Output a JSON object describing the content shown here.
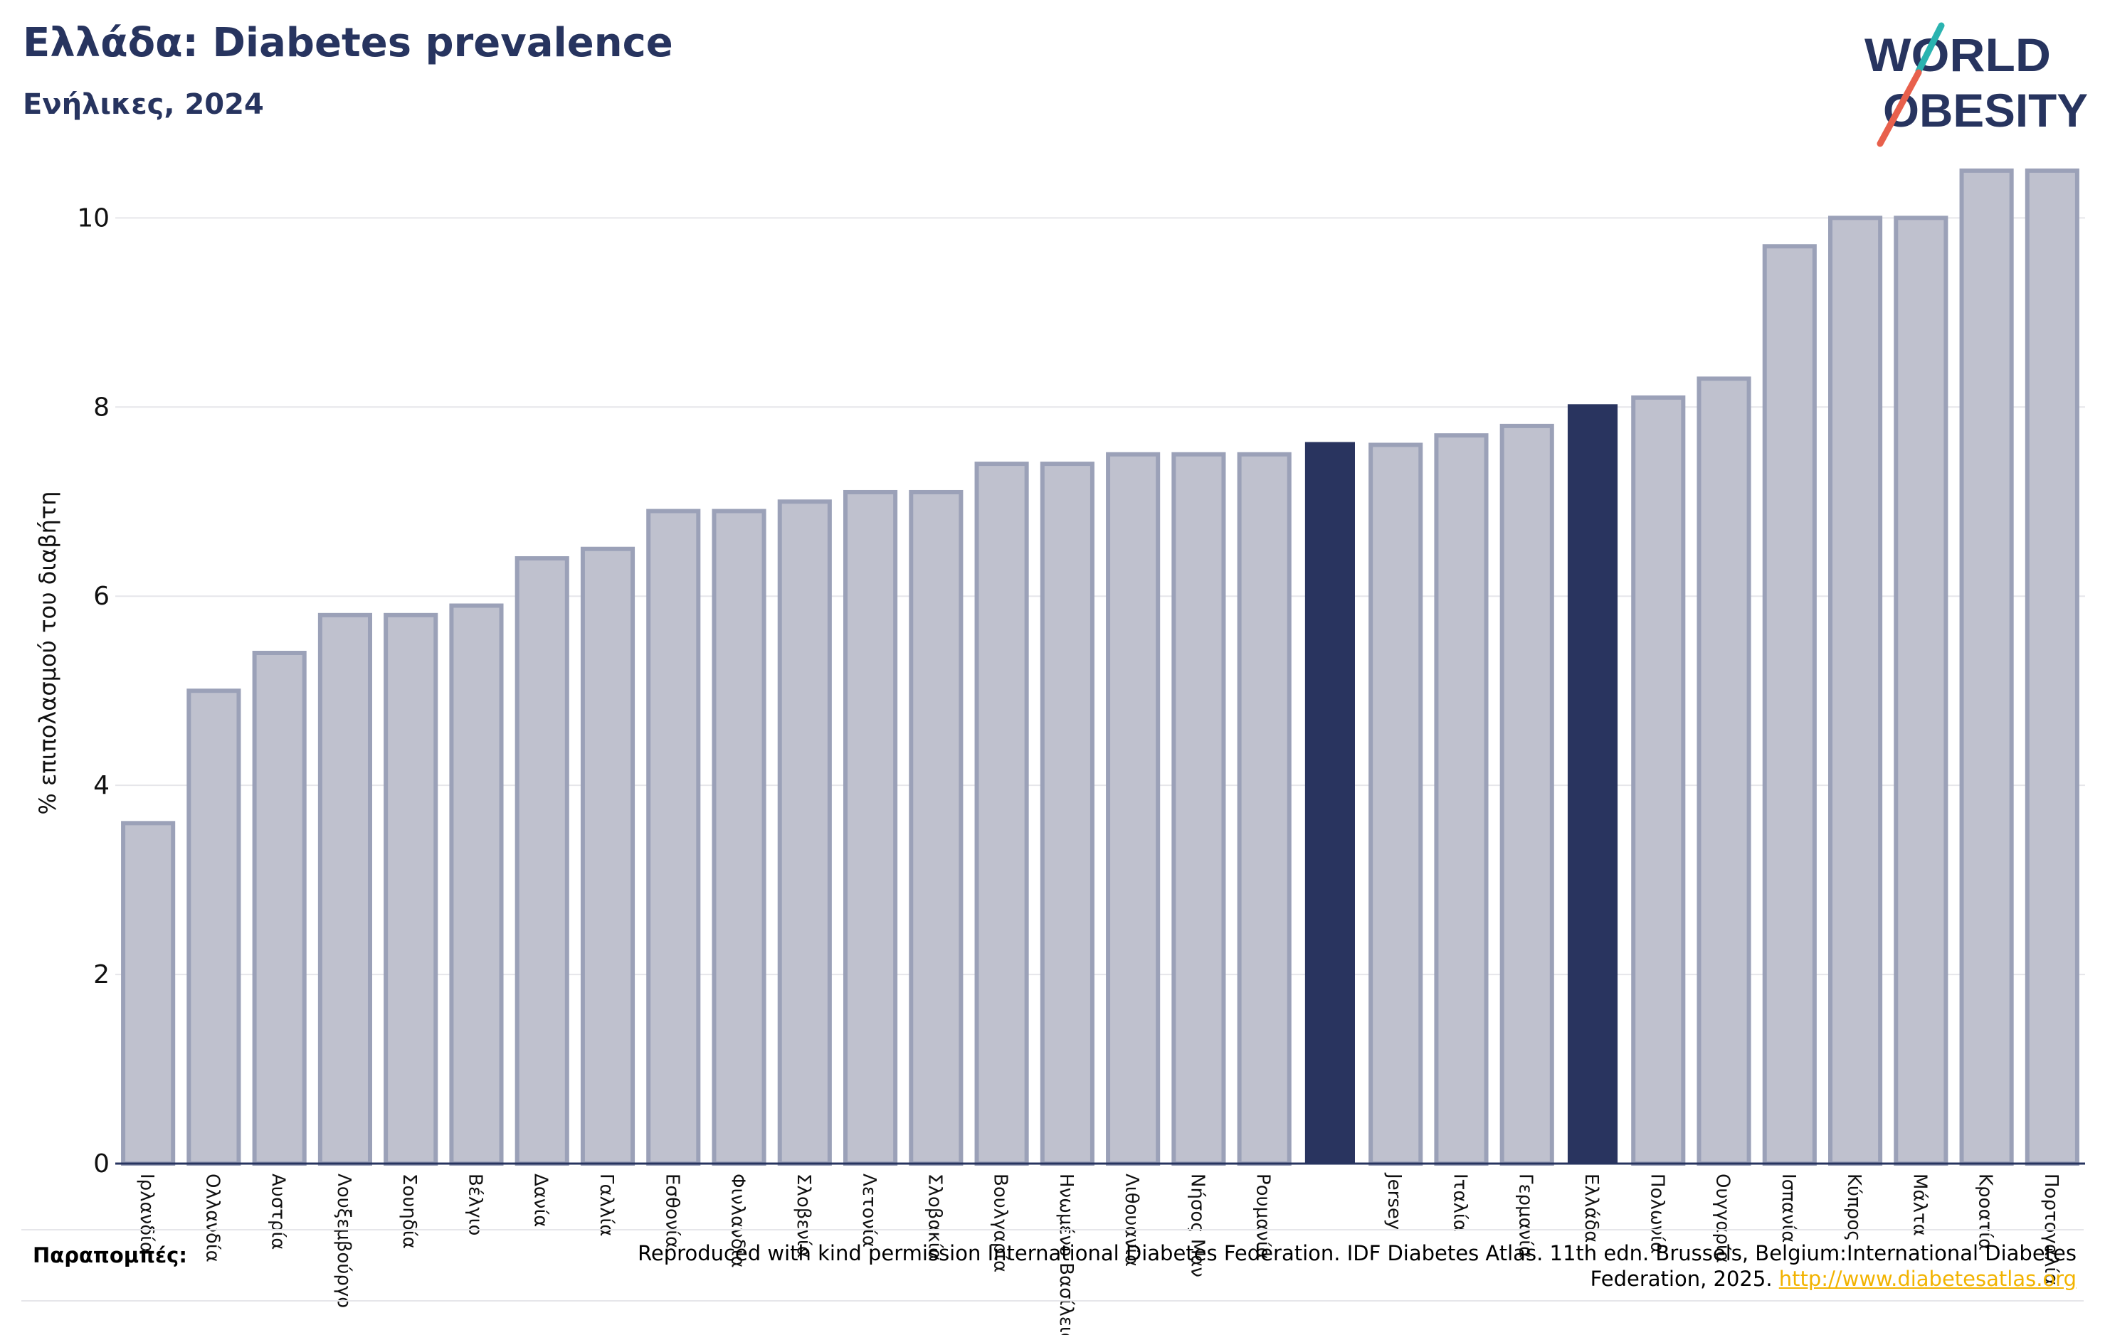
{
  "header": {
    "title": "Ελλάδα: Diabetes prevalence",
    "subtitle": "Ενήλικες, 2024"
  },
  "logo": {
    "line1": "WORLD",
    "line2": "OBESITY"
  },
  "colors": {
    "highlight": "#29345f",
    "bar": "#bfc1ce",
    "bar_outline": "#9ba1b8",
    "grid": "#e6e6ea",
    "text_dark": "#27345f",
    "link": "#f2b300",
    "logo_teal": "#2ab3b0",
    "logo_red": "#e8604c"
  },
  "chart_data": {
    "type": "bar",
    "categories": [
      "Ιρλανδία",
      "Ολλανδία",
      "Αυστρία",
      "Λουξεμβούργο",
      "Σουηδία",
      "Βέλγιο",
      "Δανία",
      "Γαλλία",
      "Εσθονία",
      "Φινλανδία",
      "Σλοβενία",
      "Λετονία",
      "Σλοβακία",
      "Βουλγαρία",
      "Ηνωμένο Βασίλειο",
      "Λιθουανία",
      "Νήσος Μαν",
      "Ρουμανία",
      "",
      "Jersey",
      "Ιταλία",
      "Γερμανία",
      "Ελλάδα",
      "Πολωνία",
      "Ουγγαρία",
      "Ισπανία",
      "Κύπρος",
      "Μάλτα",
      "Κροατία",
      "Πορτογαλία"
    ],
    "values": [
      3.6,
      5.0,
      5.4,
      5.8,
      5.8,
      5.9,
      6.4,
      6.5,
      6.9,
      6.9,
      7.0,
      7.1,
      7.1,
      7.4,
      7.4,
      7.5,
      7.5,
      7.5,
      7.63,
      7.6,
      7.7,
      7.8,
      8.03,
      8.1,
      8.3,
      9.7,
      10.0,
      10.0,
      10.5,
      10.5
    ],
    "highlight_indices": [
      18,
      22
    ],
    "ylabel": "% επιπολασμού του διαβήτη",
    "yticks": [
      0,
      2,
      4,
      6,
      8,
      10
    ],
    "ylim": [
      0,
      10.8
    ],
    "grid": true,
    "legend": "none"
  },
  "references": {
    "label": "Παραπομπές:",
    "text": "Reproduced with kind permission International Diabetes Federation. IDF Diabetes Atlas. 11th edn. Brussels, Belgium:International Diabetes Federation, 2025.",
    "link": "http://www.diabetesatlas.org"
  }
}
